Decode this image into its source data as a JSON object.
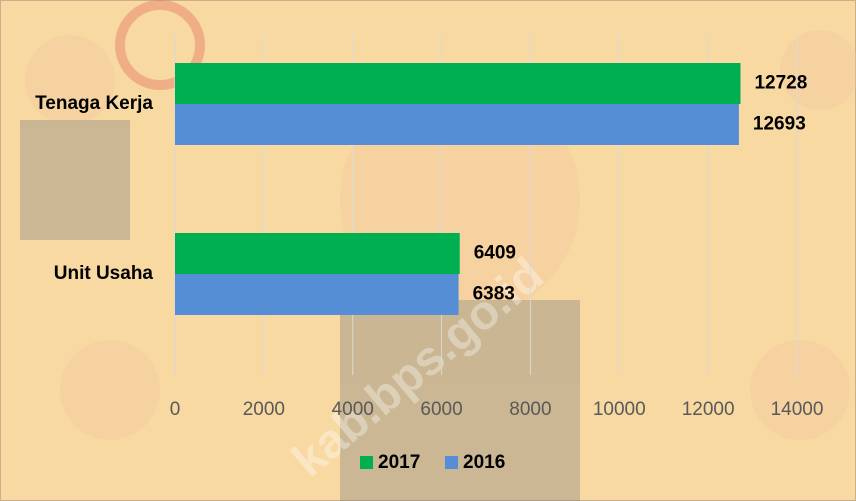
{
  "chart_data": {
    "type": "hbar",
    "categories": [
      "Tenaga Kerja",
      "Unit Usaha"
    ],
    "series": [
      {
        "name": "2017",
        "color": "#00b050",
        "values": [
          12728,
          6409
        ]
      },
      {
        "name": "2016",
        "color": "#558ed5",
        "values": [
          12693,
          6383
        ]
      }
    ],
    "xlim": [
      0,
      14000
    ],
    "xticks": [
      0,
      2000,
      4000,
      6000,
      8000,
      10000,
      12000,
      14000
    ],
    "grid": true,
    "legend": "bottom",
    "watermark": "kab.bps.go.id"
  }
}
